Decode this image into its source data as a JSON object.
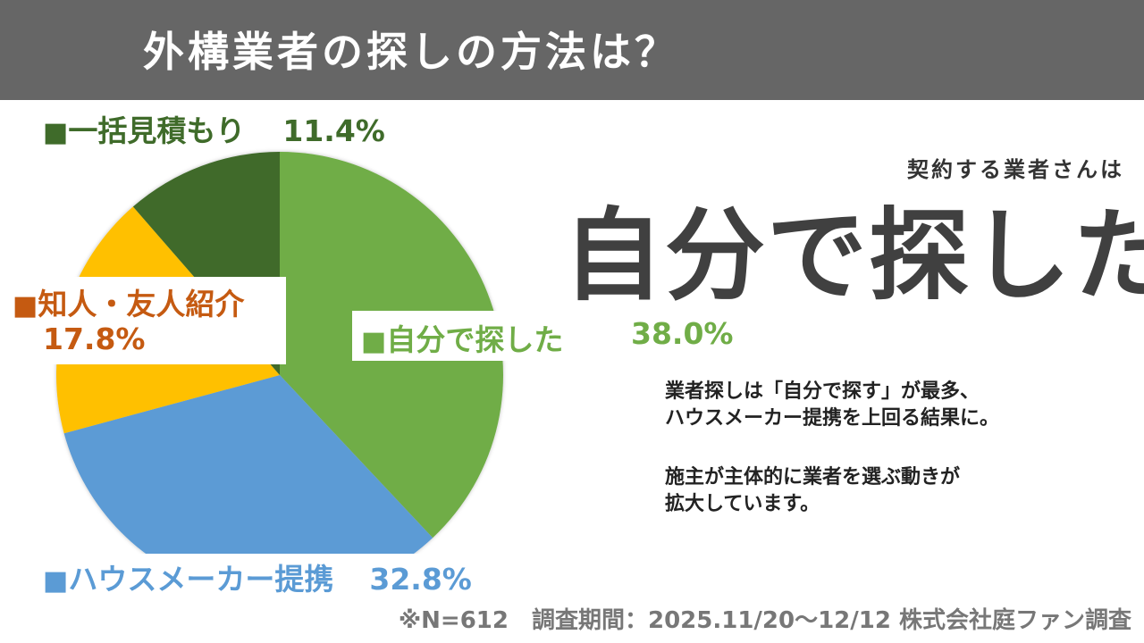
{
  "header": {
    "title": "外構業者の探しの方法は？"
  },
  "chart_data": {
    "type": "pie",
    "start": "top",
    "direction": "clockwise",
    "slices": [
      {
        "label": "自分で探した",
        "value": 38.0,
        "value_text": "38.0%",
        "color": "#70ad47"
      },
      {
        "label": "ハウスメーカー提携",
        "value": 32.8,
        "value_text": "32.8%",
        "color": "#5b9bd5"
      },
      {
        "label": "知人・友人紹介",
        "value": 17.8,
        "value_text": "17.8%",
        "color": "#ffc000"
      },
      {
        "label": "一括見積もり",
        "value": 11.4,
        "value_text": "11.4%",
        "color": "#3f6b2a"
      }
    ]
  },
  "legend_labels": {
    "marker": "■",
    "green_label": "自分で探した",
    "green_pct": "38.0%",
    "blue_label": "ハウスメーカー提携",
    "blue_pct": "32.8%",
    "orange_label": "知人・友人紹介",
    "orange_pct": "17.8%",
    "dark_label": "一括見積もり",
    "dark_pct": "11.4%"
  },
  "headline": {
    "sub": "契約する業者さんは",
    "main": "自分で探した"
  },
  "description": {
    "line1": "業者探しは「自分で探す」が最多、",
    "line2": "ハウスメーカー提携を上回る結果に。",
    "line3": "施主が主体的に業者を選ぶ動きが",
    "line4": "拡大しています。"
  },
  "footer": {
    "note": "※N=612　調査期間：2025.11/20～12/12 株式会社庭ファン調査"
  }
}
